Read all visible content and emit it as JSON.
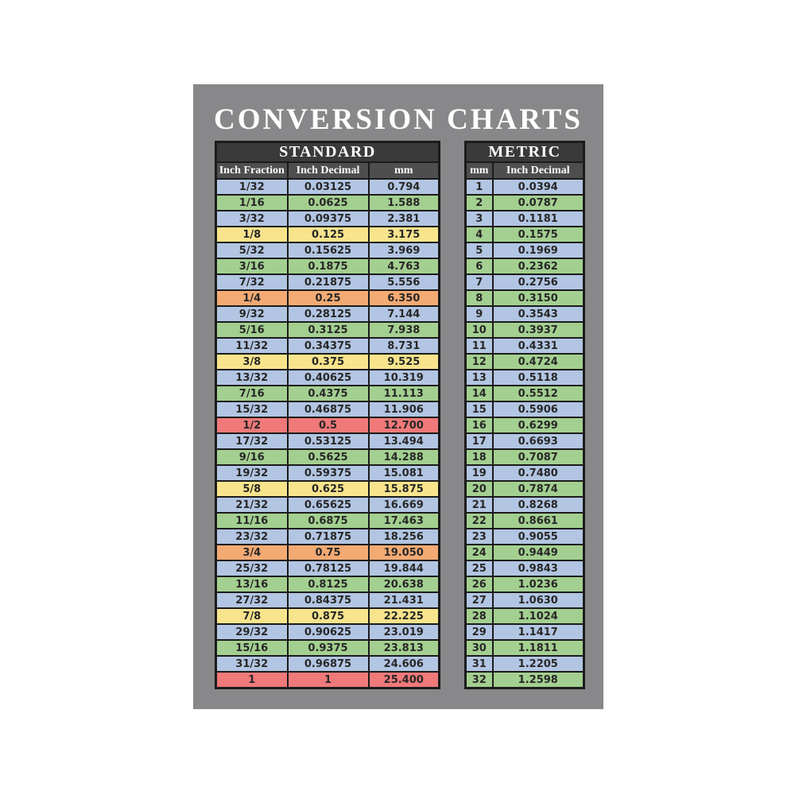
{
  "page_title": "CONVERSION CHARTS",
  "colors": {
    "page_bg": "#ffffff",
    "card_bg": "#88888a",
    "band_dark": "#3a3a3b",
    "band_mid": "#4e4e4f",
    "border": "#1b1b1b",
    "cell_text": "#272727",
    "header_text": "#ffffff",
    "row_blue": "#b2c5e2",
    "row_green": "#a3cf90",
    "row_yellow": "#f8e48c",
    "row_orange": "#f3aa73",
    "row_red": "#f0797a"
  },
  "chart_data": [
    {
      "type": "table",
      "title": "STANDARD",
      "columns": [
        "Inch Fraction",
        "Inch Decimal",
        "mm"
      ],
      "rows": [
        {
          "cells": [
            "1/32",
            "0.03125",
            "0.794"
          ],
          "color": "blue"
        },
        {
          "cells": [
            "1/16",
            "0.0625",
            "1.588"
          ],
          "color": "green"
        },
        {
          "cells": [
            "3/32",
            "0.09375",
            "2.381"
          ],
          "color": "blue"
        },
        {
          "cells": [
            "1/8",
            "0.125",
            "3.175"
          ],
          "color": "yellow"
        },
        {
          "cells": [
            "5/32",
            "0.15625",
            "3.969"
          ],
          "color": "blue"
        },
        {
          "cells": [
            "3/16",
            "0.1875",
            "4.763"
          ],
          "color": "green"
        },
        {
          "cells": [
            "7/32",
            "0.21875",
            "5.556"
          ],
          "color": "blue"
        },
        {
          "cells": [
            "1/4",
            "0.25",
            "6.350"
          ],
          "color": "orange"
        },
        {
          "cells": [
            "9/32",
            "0.28125",
            "7.144"
          ],
          "color": "blue"
        },
        {
          "cells": [
            "5/16",
            "0.3125",
            "7.938"
          ],
          "color": "green"
        },
        {
          "cells": [
            "11/32",
            "0.34375",
            "8.731"
          ],
          "color": "blue"
        },
        {
          "cells": [
            "3/8",
            "0.375",
            "9.525"
          ],
          "color": "yellow"
        },
        {
          "cells": [
            "13/32",
            "0.40625",
            "10.319"
          ],
          "color": "blue"
        },
        {
          "cells": [
            "7/16",
            "0.4375",
            "11.113"
          ],
          "color": "green"
        },
        {
          "cells": [
            "15/32",
            "0.46875",
            "11.906"
          ],
          "color": "blue"
        },
        {
          "cells": [
            "1/2",
            "0.5",
            "12.700"
          ],
          "color": "red"
        },
        {
          "cells": [
            "17/32",
            "0.53125",
            "13.494"
          ],
          "color": "blue"
        },
        {
          "cells": [
            "9/16",
            "0.5625",
            "14.288"
          ],
          "color": "green"
        },
        {
          "cells": [
            "19/32",
            "0.59375",
            "15.081"
          ],
          "color": "blue"
        },
        {
          "cells": [
            "5/8",
            "0.625",
            "15.875"
          ],
          "color": "yellow"
        },
        {
          "cells": [
            "21/32",
            "0.65625",
            "16.669"
          ],
          "color": "blue"
        },
        {
          "cells": [
            "11/16",
            "0.6875",
            "17.463"
          ],
          "color": "green"
        },
        {
          "cells": [
            "23/32",
            "0.71875",
            "18.256"
          ],
          "color": "blue"
        },
        {
          "cells": [
            "3/4",
            "0.75",
            "19.050"
          ],
          "color": "orange"
        },
        {
          "cells": [
            "25/32",
            "0.78125",
            "19.844"
          ],
          "color": "blue"
        },
        {
          "cells": [
            "13/16",
            "0.8125",
            "20.638"
          ],
          "color": "green"
        },
        {
          "cells": [
            "27/32",
            "0.84375",
            "21.431"
          ],
          "color": "blue"
        },
        {
          "cells": [
            "7/8",
            "0.875",
            "22.225"
          ],
          "color": "yellow"
        },
        {
          "cells": [
            "29/32",
            "0.90625",
            "23.019"
          ],
          "color": "blue"
        },
        {
          "cells": [
            "15/16",
            "0.9375",
            "23.813"
          ],
          "color": "green"
        },
        {
          "cells": [
            "31/32",
            "0.96875",
            "24.606"
          ],
          "color": "blue"
        },
        {
          "cells": [
            "1",
            "1",
            "25.400"
          ],
          "color": "red"
        }
      ]
    },
    {
      "type": "table",
      "title": "METRIC",
      "columns": [
        "mm",
        "Inch Decimal"
      ],
      "rows": [
        {
          "cells": [
            "1",
            "0.0394"
          ],
          "color": "blue"
        },
        {
          "cells": [
            "2",
            "0.0787"
          ],
          "color": "green"
        },
        {
          "cells": [
            "3",
            "0.1181"
          ],
          "color": "blue"
        },
        {
          "cells": [
            "4",
            "0.1575"
          ],
          "color": "green"
        },
        {
          "cells": [
            "5",
            "0.1969"
          ],
          "color": "blue"
        },
        {
          "cells": [
            "6",
            "0.2362"
          ],
          "color": "green"
        },
        {
          "cells": [
            "7",
            "0.2756"
          ],
          "color": "blue"
        },
        {
          "cells": [
            "8",
            "0.3150"
          ],
          "color": "green"
        },
        {
          "cells": [
            "9",
            "0.3543"
          ],
          "color": "blue"
        },
        {
          "cells": [
            "10",
            "0.3937"
          ],
          "color": "green"
        },
        {
          "cells": [
            "11",
            "0.4331"
          ],
          "color": "blue"
        },
        {
          "cells": [
            "12",
            "0.4724"
          ],
          "color": "green"
        },
        {
          "cells": [
            "13",
            "0.5118"
          ],
          "color": "blue"
        },
        {
          "cells": [
            "14",
            "0.5512"
          ],
          "color": "green"
        },
        {
          "cells": [
            "15",
            "0.5906"
          ],
          "color": "blue"
        },
        {
          "cells": [
            "16",
            "0.6299"
          ],
          "color": "green"
        },
        {
          "cells": [
            "17",
            "0.6693"
          ],
          "color": "blue"
        },
        {
          "cells": [
            "18",
            "0.7087"
          ],
          "color": "green"
        },
        {
          "cells": [
            "19",
            "0.7480"
          ],
          "color": "blue"
        },
        {
          "cells": [
            "20",
            "0.7874"
          ],
          "color": "green"
        },
        {
          "cells": [
            "21",
            "0.8268"
          ],
          "color": "blue"
        },
        {
          "cells": [
            "22",
            "0.8661"
          ],
          "color": "green"
        },
        {
          "cells": [
            "23",
            "0.9055"
          ],
          "color": "blue"
        },
        {
          "cells": [
            "24",
            "0.9449"
          ],
          "color": "green"
        },
        {
          "cells": [
            "25",
            "0.9843"
          ],
          "color": "blue"
        },
        {
          "cells": [
            "26",
            "1.0236"
          ],
          "color": "green"
        },
        {
          "cells": [
            "27",
            "1.0630"
          ],
          "color": "blue"
        },
        {
          "cells": [
            "28",
            "1.1024"
          ],
          "color": "green"
        },
        {
          "cells": [
            "29",
            "1.1417"
          ],
          "color": "blue"
        },
        {
          "cells": [
            "30",
            "1.1811"
          ],
          "color": "green"
        },
        {
          "cells": [
            "31",
            "1.2205"
          ],
          "color": "blue"
        },
        {
          "cells": [
            "32",
            "1.2598"
          ],
          "color": "green"
        }
      ]
    }
  ]
}
